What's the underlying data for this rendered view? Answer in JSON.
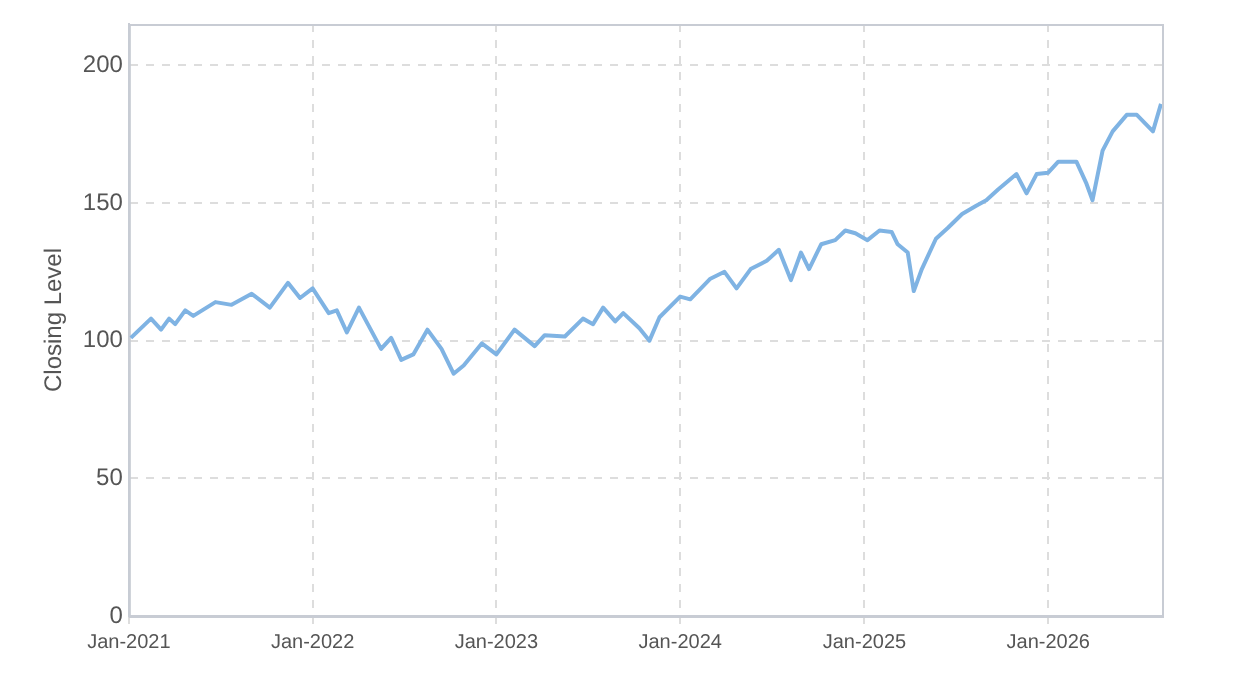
{
  "chart_data": {
    "type": "line",
    "ylabel": "Closing Level",
    "x": [
      "2021-01-05",
      "2021-02-14",
      "2021-03-06",
      "2021-03-22",
      "2021-04-03",
      "2021-04-23",
      "2021-05-09",
      "2021-06-22",
      "2021-07-24",
      "2021-09-02",
      "2021-10-08",
      "2021-11-13",
      "2021-12-07",
      "2022-01-01",
      "2022-02-02",
      "2022-02-18",
      "2022-03-10",
      "2022-04-03",
      "2022-05-17",
      "2022-06-06",
      "2022-06-26",
      "2022-07-20",
      "2022-08-17",
      "2022-09-14",
      "2022-10-08",
      "2022-10-28",
      "2022-12-03",
      "2023-01-01",
      "2023-02-06",
      "2023-03-18",
      "2023-04-07",
      "2023-05-17",
      "2023-06-22",
      "2023-07-12",
      "2023-08-01",
      "2023-08-25",
      "2023-09-10",
      "2023-10-12",
      "2023-11-01",
      "2023-11-21",
      "2024-01-01",
      "2024-01-21",
      "2024-03-01",
      "2024-03-29",
      "2024-04-22",
      "2024-05-20",
      "2024-06-21",
      "2024-07-15",
      "2024-08-08",
      "2024-08-28",
      "2024-09-13",
      "2024-10-07",
      "2024-11-04",
      "2024-11-24",
      "2024-12-14",
      "2025-01-07",
      "2025-01-31",
      "2025-02-24",
      "2025-03-08",
      "2025-03-28",
      "2025-04-09",
      "2025-04-25",
      "2025-05-23",
      "2025-06-16",
      "2025-07-14",
      "2025-08-11",
      "2025-08-31",
      "2025-09-24",
      "2025-10-30",
      "2025-11-19",
      "2025-12-09",
      "2026-01-01",
      "2026-01-21",
      "2026-02-26",
      "2026-03-18",
      "2026-03-30",
      "2026-04-19",
      "2026-05-09",
      "2026-06-06",
      "2026-06-26",
      "2026-07-28",
      "2026-08-13"
    ],
    "series": [
      {
        "color": "#7fb3e3",
        "values": [
          101,
          108,
          104,
          108,
          106,
          111,
          109,
          114,
          113,
          117,
          112,
          121,
          115.5,
          119,
          110,
          111,
          103,
          112,
          97,
          101,
          93,
          95,
          104,
          97,
          88,
          91,
          99,
          95,
          104,
          98,
          102,
          101.5,
          108,
          106,
          112,
          107,
          110,
          104.5,
          100,
          108.5,
          116,
          115,
          122.5,
          125,
          119,
          126,
          129,
          133,
          122,
          132,
          126,
          135,
          136.5,
          140,
          139,
          136.5,
          140,
          139.5,
          135,
          132,
          118,
          126,
          137,
          141,
          146,
          149,
          151,
          155,
          160.5,
          153.5,
          160.5,
          161,
          165,
          165,
          157,
          151,
          169,
          176,
          182,
          182,
          176,
          186
        ]
      }
    ],
    "xlim": [
      "2021-01-01",
      "2026-08-15"
    ],
    "xticks": [
      {
        "value": "2021-01",
        "label": "Jan-2021"
      },
      {
        "value": "2022-01",
        "label": "Jan-2022"
      },
      {
        "value": "2023-01",
        "label": "Jan-2023"
      },
      {
        "value": "2024-01",
        "label": "Jan-2024"
      },
      {
        "value": "2025-01",
        "label": "Jan-2025"
      },
      {
        "value": "2026-01",
        "label": "Jan-2026"
      }
    ],
    "ylim": [
      0,
      215
    ],
    "yticks": [
      0,
      50,
      100,
      150,
      200
    ],
    "grid": true,
    "legend": false,
    "marker": "none",
    "line_style": "solid"
  }
}
